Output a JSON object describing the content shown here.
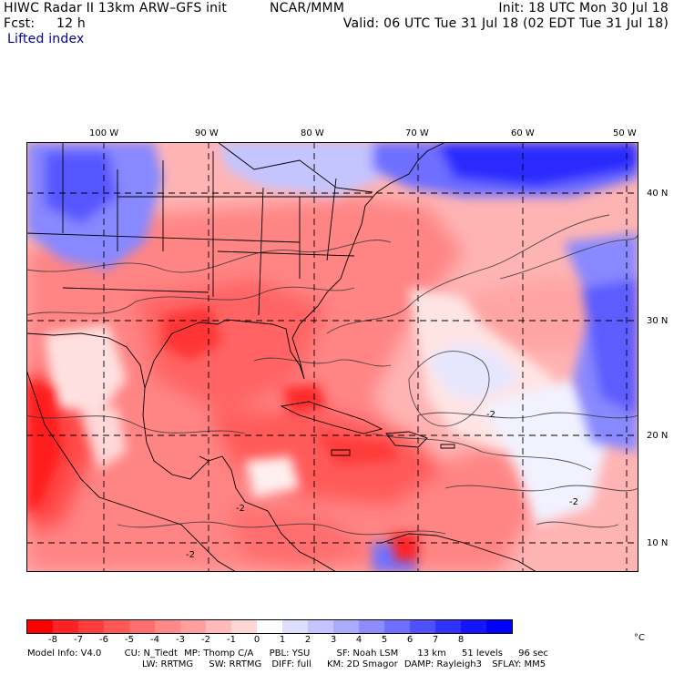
{
  "header": {
    "model_line": "HIWC Radar II 13km ARW–GFS init",
    "org": "NCAR/MMM",
    "init": "Init: 18 UTC Mon 30 Jul 18",
    "fcst_label": "Fcst:",
    "fcst_value": "12 h",
    "valid": "Valid: 06 UTC Tue 31 Jul 18 (02 EDT Tue 31 Jul 18)",
    "field": "Lifted index"
  },
  "map": {
    "lon_labels": [
      "100 W",
      "90 W",
      "80 W",
      "70 W",
      "60 W",
      "50 W"
    ],
    "lat_labels": [
      "40 N",
      "30 N",
      "20 N",
      "10 N"
    ],
    "contour_labels": [
      "-2",
      "-2",
      "-2",
      "-2"
    ]
  },
  "colorbar": {
    "labels": [
      "-8",
      "-7",
      "-6",
      "-5",
      "-4",
      "-3",
      "-2",
      "-1",
      "0",
      "1",
      "2",
      "3",
      "4",
      "5",
      "6",
      "7",
      "8"
    ],
    "unit": "°C",
    "colors": [
      "#ff0000",
      "#ff2222",
      "#ff3c3c",
      "#ff5656",
      "#ff6e6e",
      "#ff8888",
      "#ffa0a0",
      "#ffbaba",
      "#ffd6d6",
      "#ffffff",
      "#dedefe",
      "#c4c4fe",
      "#aaaaff",
      "#8c8cff",
      "#6e6eff",
      "#5050ff",
      "#3232ff",
      "#1414ff",
      "#0000ff"
    ]
  },
  "model_info": {
    "line1": [
      "Model Info: V4.0",
      "CU: N_Tiedt",
      "MP: Thomp C/A",
      "PBL: YSU",
      "SF: Noah LSM",
      "13 km",
      "51 levels",
      "96 sec"
    ],
    "line2": [
      "LW: RRTMG",
      "SW: RRTMG",
      "DIFF: full",
      "KM: 2D Smagor",
      "DAMP: Rayleigh3",
      "SFLAY: MM5"
    ]
  }
}
